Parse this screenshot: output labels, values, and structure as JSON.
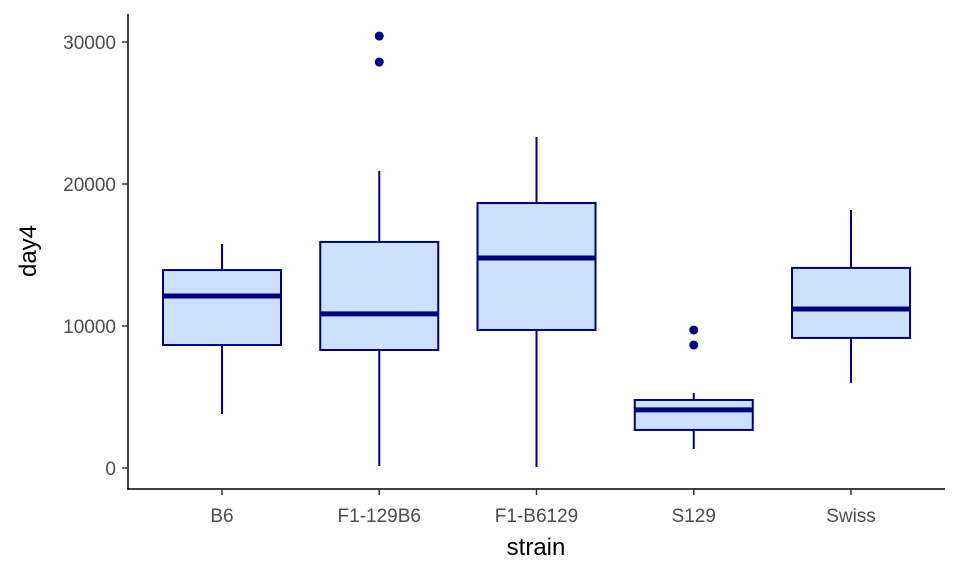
{
  "chart_data": {
    "type": "boxplot",
    "title": "",
    "xlabel": "strain",
    "ylabel": "day4",
    "ylim": [
      -1500,
      32000
    ],
    "yticks": [
      0,
      10000,
      20000,
      30000
    ],
    "ytick_labels": [
      "0",
      "10000",
      "20000",
      "30000"
    ],
    "categories": [
      "B6",
      "F1-129B6",
      "F1-B6129",
      "S129",
      "Swiss"
    ],
    "boxes": [
      {
        "name": "B6",
        "whisker_low": 3800,
        "q1": 8660,
        "median": 12110,
        "q3": 13940,
        "whisker_high": 15780,
        "outliers": []
      },
      {
        "name": "F1-129B6",
        "whisker_low": 140,
        "q1": 8310,
        "median": 10850,
        "q3": 15920,
        "whisker_high": 20920,
        "outliers": [
          28590,
          30420
        ]
      },
      {
        "name": "F1-B6129",
        "whisker_low": 70,
        "q1": 9720,
        "median": 14790,
        "q3": 18660,
        "whisker_high": 23310,
        "outliers": []
      },
      {
        "name": "S129",
        "whisker_low": 1340,
        "q1": 2680,
        "median": 4090,
        "q3": 4790,
        "whisker_high": 5280,
        "outliers": [
          8660,
          9720
        ]
      },
      {
        "name": "Swiss",
        "whisker_low": 5990,
        "q1": 9160,
        "median": 11200,
        "q3": 14090,
        "whisker_high": 18170,
        "outliers": []
      }
    ],
    "colors": {
      "fill": "#cce0ff",
      "stroke": "#00007f"
    },
    "grid": false,
    "legend": "none"
  }
}
